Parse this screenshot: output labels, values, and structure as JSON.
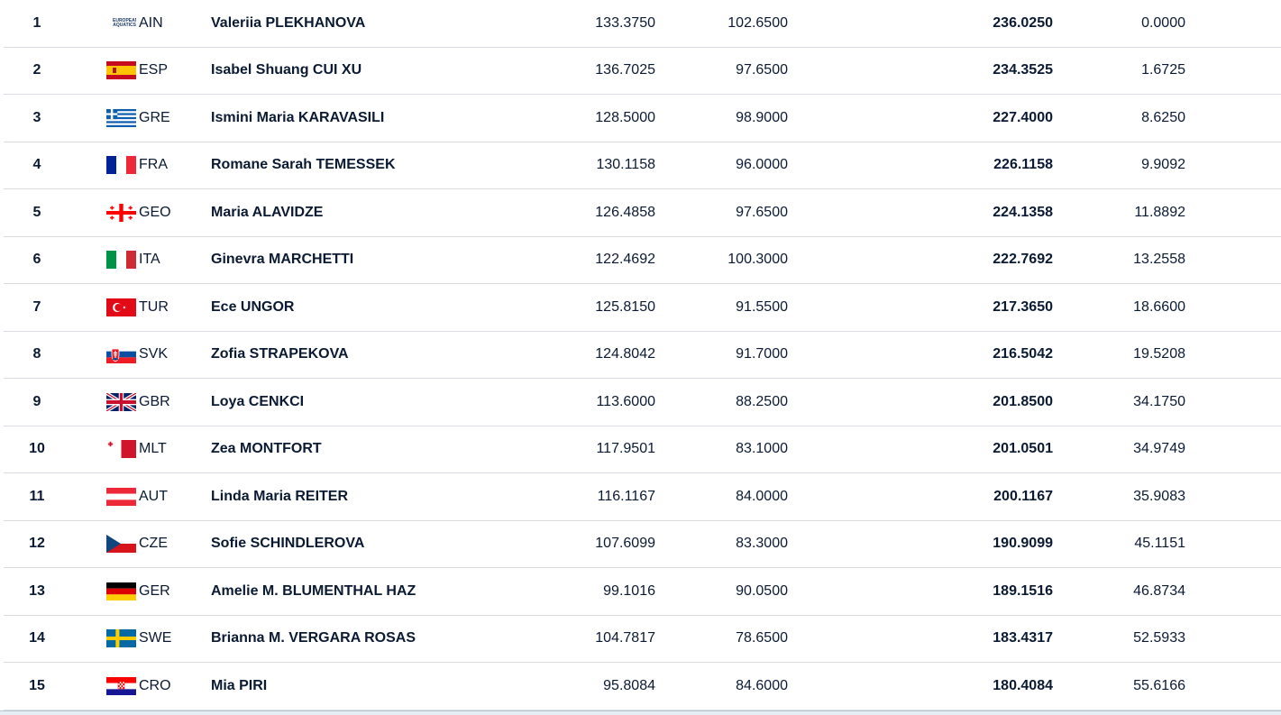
{
  "rows": [
    {
      "rank": "1",
      "code": "AIN",
      "flag": "ain-logo-icon",
      "name": "Valeriia PLEKHANOVA",
      "score1": "133.3750",
      "score2": "102.6500",
      "total": "236.0250",
      "diff": "0.0000"
    },
    {
      "rank": "2",
      "code": "ESP",
      "flag": "flag-esp-icon",
      "name": "Isabel Shuang CUI XU",
      "score1": "136.7025",
      "score2": "97.6500",
      "total": "234.3525",
      "diff": "1.6725"
    },
    {
      "rank": "3",
      "code": "GRE",
      "flag": "flag-gre-icon",
      "name": "Ismini Maria KARAVASILI",
      "score1": "128.5000",
      "score2": "98.9000",
      "total": "227.4000",
      "diff": "8.6250"
    },
    {
      "rank": "4",
      "code": "FRA",
      "flag": "flag-fra-icon",
      "name": "Romane Sarah TEMESSEK",
      "score1": "130.1158",
      "score2": "96.0000",
      "total": "226.1158",
      "diff": "9.9092"
    },
    {
      "rank": "5",
      "code": "GEO",
      "flag": "flag-geo-icon",
      "name": "Maria ALAVIDZE",
      "score1": "126.4858",
      "score2": "97.6500",
      "total": "224.1358",
      "diff": "11.8892"
    },
    {
      "rank": "6",
      "code": "ITA",
      "flag": "flag-ita-icon",
      "name": "Ginevra MARCHETTI",
      "score1": "122.4692",
      "score2": "100.3000",
      "total": "222.7692",
      "diff": "13.2558"
    },
    {
      "rank": "7",
      "code": "TUR",
      "flag": "flag-tur-icon",
      "name": "Ece UNGOR",
      "score1": "125.8150",
      "score2": "91.5500",
      "total": "217.3650",
      "diff": "18.6600"
    },
    {
      "rank": "8",
      "code": "SVK",
      "flag": "flag-svk-icon",
      "name": "Zofia STRAPEKOVA",
      "score1": "124.8042",
      "score2": "91.7000",
      "total": "216.5042",
      "diff": "19.5208"
    },
    {
      "rank": "9",
      "code": "GBR",
      "flag": "flag-gbr-icon",
      "name": "Loya CENKCI",
      "score1": "113.6000",
      "score2": "88.2500",
      "total": "201.8500",
      "diff": "34.1750"
    },
    {
      "rank": "10",
      "code": "MLT",
      "flag": "flag-mlt-icon",
      "name": "Zea MONTFORT",
      "score1": "117.9501",
      "score2": "83.1000",
      "total": "201.0501",
      "diff": "34.9749"
    },
    {
      "rank": "11",
      "code": "AUT",
      "flag": "flag-aut-icon",
      "name": "Linda Maria REITER",
      "score1": "116.1167",
      "score2": "84.0000",
      "total": "200.1167",
      "diff": "35.9083"
    },
    {
      "rank": "12",
      "code": "CZE",
      "flag": "flag-cze-icon",
      "name": "Sofie SCHINDLEROVA",
      "score1": "107.6099",
      "score2": "83.3000",
      "total": "190.9099",
      "diff": "45.1151"
    },
    {
      "rank": "13",
      "code": "GER",
      "flag": "flag-ger-icon",
      "name": "Amelie M. BLUMENTHAL HAZ",
      "score1": "99.1016",
      "score2": "90.0500",
      "total": "189.1516",
      "diff": "46.8734"
    },
    {
      "rank": "14",
      "code": "SWE",
      "flag": "flag-swe-icon",
      "name": "Brianna M. VERGARA ROSAS",
      "score1": "104.7817",
      "score2": "78.6500",
      "total": "183.4317",
      "diff": "52.5933"
    },
    {
      "rank": "15",
      "code": "CRO",
      "flag": "flag-cro-icon",
      "name": "Mia PIRI",
      "score1": "95.8084",
      "score2": "84.6000",
      "total": "180.4084",
      "diff": "55.6166"
    }
  ],
  "ain_logo_text": "EUROPEAN AQUATICS",
  "colors": {
    "text": "#0b1a33",
    "divider": "#d9dde3"
  }
}
